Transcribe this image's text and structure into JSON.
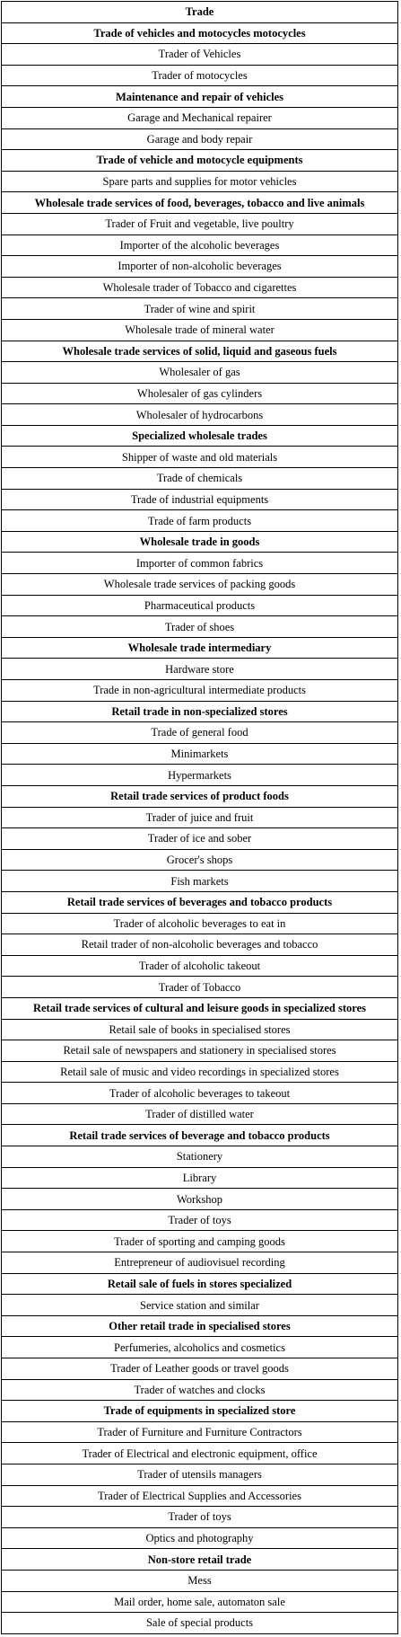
{
  "table": {
    "rows": [
      {
        "text": "Trade",
        "header": true
      },
      {
        "text": "Trade of vehicles and motocycles motocycles",
        "header": true
      },
      {
        "text": "Trader of Vehicles",
        "header": false
      },
      {
        "text": "Trader of motocycles",
        "header": false
      },
      {
        "text": "Maintenance and repair of vehicles",
        "header": true
      },
      {
        "text": "Garage and Mechanical repairer",
        "header": false
      },
      {
        "text": "Garage and body repair",
        "header": false
      },
      {
        "text": "Trade of vehicle and motocycle equipments",
        "header": true
      },
      {
        "text": "Spare parts and supplies for motor vehicles",
        "header": false
      },
      {
        "text": "Wholesale trade services of food, beverages, tobacco and live animals",
        "header": true
      },
      {
        "text": "Trader of Fruit and vegetable, live poultry",
        "header": false
      },
      {
        "text": "Importer of the alcoholic beverages",
        "header": false
      },
      {
        "text": "Importer of non-alcoholic beverages",
        "header": false
      },
      {
        "text": "Wholesale trader of Tobacco and cigarettes",
        "header": false
      },
      {
        "text": "Trader of wine and spirit",
        "header": false
      },
      {
        "text": "Wholesale trade of mineral water",
        "header": false
      },
      {
        "text": "Wholesale trade services of solid, liquid and gaseous fuels",
        "header": true
      },
      {
        "text": "Wholesaler of gas",
        "header": false
      },
      {
        "text": "Wholesaler of gas cylinders",
        "header": false
      },
      {
        "text": "Wholesaler of hydrocarbons",
        "header": false
      },
      {
        "text": "Specialized wholesale trades",
        "header": true
      },
      {
        "text": "Shipper of waste and old materials",
        "header": false
      },
      {
        "text": "Trade of chemicals",
        "header": false
      },
      {
        "text": "Trade of industrial equipments",
        "header": false
      },
      {
        "text": "Trade of farm products",
        "header": false
      },
      {
        "text": "Wholesale trade in goods",
        "header": true
      },
      {
        "text": "Importer of common fabrics",
        "header": false
      },
      {
        "text": "Wholesale trade services of packing goods",
        "header": false
      },
      {
        "text": "Pharmaceutical products",
        "header": false
      },
      {
        "text": "Trader of shoes",
        "header": false
      },
      {
        "text": "Wholesale trade intermediary",
        "header": true
      },
      {
        "text": "Hardware store",
        "header": false
      },
      {
        "text": "Trade in non-agricultural intermediate products",
        "header": false
      },
      {
        "text": "Retail trade in non-specialized stores",
        "header": true
      },
      {
        "text": "Trade of general food",
        "header": false
      },
      {
        "text": "Minimarkets",
        "header": false
      },
      {
        "text": "Hypermarkets",
        "header": false
      },
      {
        "text": "Retail trade services of product foods",
        "header": true
      },
      {
        "text": "Trader of juice and fruit",
        "header": false
      },
      {
        "text": "Trader of ice and sober",
        "header": false
      },
      {
        "text": "Grocer's shops",
        "header": false
      },
      {
        "text": "Fish markets",
        "header": false
      },
      {
        "text": "Retail trade services of beverages and tobacco products",
        "header": true
      },
      {
        "text": "Trader of alcoholic beverages to eat in",
        "header": false
      },
      {
        "text": "Retail trader of non-alcoholic beverages and tobacco",
        "header": false
      },
      {
        "text": "Trader of alcoholic takeout",
        "header": false
      },
      {
        "text": "Trader of Tobacco",
        "header": false
      },
      {
        "text": "Retail trade services of cultural and leisure goods in specialized stores",
        "header": true
      },
      {
        "text": "Retail sale of books in specialised stores",
        "header": false
      },
      {
        "text": "Retail sale of newspapers and stationery in specialised stores",
        "header": false
      },
      {
        "text": "Retail sale of music and video recordings in specialized stores",
        "header": false
      },
      {
        "text": "Trader of alcoholic beverages to takeout",
        "header": false
      },
      {
        "text": "Trader of distilled water",
        "header": false
      },
      {
        "text": "Retail trade services of beverage and tobacco products",
        "header": true
      },
      {
        "text": "Stationery",
        "header": false
      },
      {
        "text": "Library",
        "header": false
      },
      {
        "text": "Workshop",
        "header": false
      },
      {
        "text": "Trader of toys",
        "header": false
      },
      {
        "text": "Trader of sporting and camping goods",
        "header": false
      },
      {
        "text": "Entrepreneur of audiovisuel recording",
        "header": false
      },
      {
        "text": "Retail sale of fuels in stores specialized",
        "header": true
      },
      {
        "text": "Service station and similar",
        "header": false
      },
      {
        "text": "Other retail trade in specialised stores",
        "header": true
      },
      {
        "text": "Perfumeries, alcoholics and cosmetics",
        "header": false
      },
      {
        "text": "Trader of Leather goods or travel goods",
        "header": false
      },
      {
        "text": "Trader of watches and clocks",
        "header": false
      },
      {
        "text": "Trade of equipments in specialized store",
        "header": true
      },
      {
        "text": "Trader of Furniture and Furniture Contractors",
        "header": false
      },
      {
        "text": "Trader of Electrical and electronic equipment, office",
        "header": false
      },
      {
        "text": "Trader of utensils managers",
        "header": false
      },
      {
        "text": "Trader of Electrical Supplies and Accessories",
        "header": false
      },
      {
        "text": "Trader of toys",
        "header": false
      },
      {
        "text": "Optics and photography",
        "header": false
      },
      {
        "text": "Non-store retail trade",
        "header": true
      },
      {
        "text": "Mess",
        "header": false
      },
      {
        "text": "Mail order, home sale, automaton sale",
        "header": false
      },
      {
        "text": "Sale of special products",
        "header": false
      }
    ]
  }
}
